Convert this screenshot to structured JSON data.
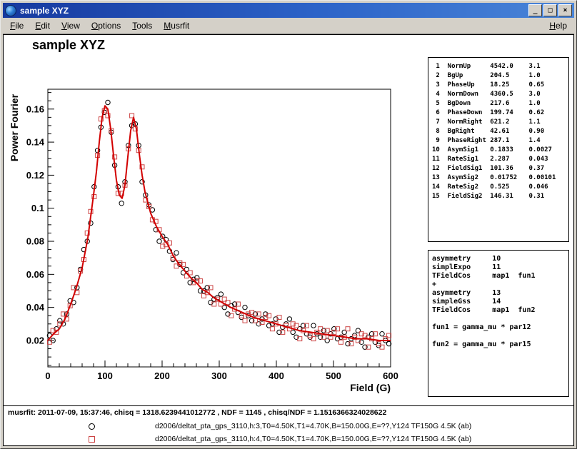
{
  "window": {
    "title": "sample XYZ",
    "titlebar_color": "#2c63c8",
    "buttons": {
      "minimize_glyph": "_",
      "maximize_glyph": "□",
      "close_glyph": "×"
    }
  },
  "menu": {
    "items": [
      "File",
      "Edit",
      "View",
      "Options",
      "Tools",
      "Musrfit"
    ],
    "help": "Help"
  },
  "canvas": {
    "title": "sample XYZ"
  },
  "params": {
    "rows": [
      {
        "n": 1,
        "name": "NormUp",
        "value": "4542.0",
        "err": "3.1"
      },
      {
        "n": 2,
        "name": "BgUp",
        "value": "204.5",
        "err": "1.0"
      },
      {
        "n": 3,
        "name": "PhaseUp",
        "value": "18.25",
        "err": "0.65"
      },
      {
        "n": 4,
        "name": "NormDown",
        "value": "4360.5",
        "err": "3.0"
      },
      {
        "n": 5,
        "name": "BgDown",
        "value": "217.6",
        "err": "1.0"
      },
      {
        "n": 6,
        "name": "PhaseDown",
        "value": "199.74",
        "err": "0.62"
      },
      {
        "n": 7,
        "name": "NormRight",
        "value": "621.2",
        "err": "1.1"
      },
      {
        "n": 8,
        "name": "BgRight",
        "value": "42.61",
        "err": "0.90"
      },
      {
        "n": 9,
        "name": "PhaseRight",
        "value": "287.1",
        "err": "1.4"
      },
      {
        "n": 10,
        "name": "AsymSig1",
        "value": "0.1833",
        "err": "0.0027"
      },
      {
        "n": 11,
        "name": "RateSig1",
        "value": "2.287",
        "err": "0.043"
      },
      {
        "n": 12,
        "name": "FieldSig1",
        "value": "101.36",
        "err": "0.37"
      },
      {
        "n": 13,
        "name": "AsymSig2",
        "value": "0.01752",
        "err": "0.00101"
      },
      {
        "n": 14,
        "name": "RateSig2",
        "value": "0.525",
        "err": "0.046"
      },
      {
        "n": 15,
        "name": "FieldSig2",
        "value": "146.31",
        "err": "0.31"
      }
    ]
  },
  "theory": {
    "lines": [
      "asymmetry     10",
      "simplExpo     11",
      "TFieldCos     map1  fun1",
      "+",
      "asymmetry     13",
      "simpleGss     14",
      "TFieldCos     map1  fun2",
      "",
      "fun1 = gamma_mu * par12",
      "",
      "fun2 = gamma_mu * par15"
    ]
  },
  "status": {
    "line": "musrfit: 2011-07-09, 15:37:46, chisq = 1318.6239441012772 , NDF = 1145 , chisq/NDF = 1.1516366324028622"
  },
  "legend": {
    "entries": [
      {
        "marker": "circle",
        "color": "#000000",
        "label": "d2006/deltat_pta_gps_3110,h:3,T0=4.50K,T1=4.70K,B=150.00G,E=??,Y124 TF150G 4.5K (ab)"
      },
      {
        "marker": "square",
        "color": "#cc4444",
        "label": "d2006/deltat_pta_gps_3110,h:4,T0=4.50K,T1=4.70K,B=150.00G,E=??,Y124 TF150G 4.5K (ab)"
      }
    ]
  },
  "chart_data": {
    "type": "scatter",
    "title": "sample XYZ",
    "xlabel": "Field (G)",
    "ylabel": "Power Fourier",
    "xlim": [
      0,
      600
    ],
    "ylim": [
      0.004,
      0.172
    ],
    "xticks": [
      0,
      100,
      200,
      300,
      400,
      500,
      600
    ],
    "yticks": [
      0.02,
      0.04,
      0.06,
      0.08,
      0.1,
      0.12,
      0.14,
      0.16
    ],
    "grid": false,
    "legend_position": "bottom",
    "series": [
      {
        "name": "h3-circles",
        "marker": "circle",
        "color": "#000000",
        "points": [
          [
            3,
            0.023
          ],
          [
            9,
            0.02
          ],
          [
            15,
            0.027
          ],
          [
            21,
            0.032
          ],
          [
            27,
            0.03
          ],
          [
            33,
            0.036
          ],
          [
            39,
            0.044
          ],
          [
            45,
            0.043
          ],
          [
            51,
            0.052
          ],
          [
            57,
            0.063
          ],
          [
            63,
            0.075
          ],
          [
            69,
            0.08
          ],
          [
            75,
            0.091
          ],
          [
            81,
            0.113
          ],
          [
            87,
            0.135
          ],
          [
            93,
            0.149
          ],
          [
            99,
            0.158
          ],
          [
            105,
            0.164
          ],
          [
            111,
            0.146
          ],
          [
            117,
            0.126
          ],
          [
            123,
            0.113
          ],
          [
            129,
            0.103
          ],
          [
            135,
            0.116
          ],
          [
            141,
            0.138
          ],
          [
            147,
            0.15
          ],
          [
            153,
            0.151
          ],
          [
            159,
            0.138
          ],
          [
            165,
            0.116
          ],
          [
            171,
            0.108
          ],
          [
            177,
            0.102
          ],
          [
            183,
            0.099
          ],
          [
            189,
            0.087
          ],
          [
            195,
            0.08
          ],
          [
            201,
            0.083
          ],
          [
            207,
            0.081
          ],
          [
            213,
            0.074
          ],
          [
            219,
            0.069
          ],
          [
            225,
            0.073
          ],
          [
            231,
            0.066
          ],
          [
            237,
            0.061
          ],
          [
            243,
            0.063
          ],
          [
            249,
            0.055
          ],
          [
            255,
            0.057
          ],
          [
            261,
            0.058
          ],
          [
            267,
            0.05
          ],
          [
            273,
            0.05
          ],
          [
            279,
            0.052
          ],
          [
            285,
            0.043
          ],
          [
            291,
            0.045
          ],
          [
            297,
            0.046
          ],
          [
            303,
            0.048
          ],
          [
            309,
            0.04
          ],
          [
            315,
            0.036
          ],
          [
            321,
            0.041
          ],
          [
            327,
            0.042
          ],
          [
            333,
            0.037
          ],
          [
            339,
            0.034
          ],
          [
            345,
            0.04
          ],
          [
            351,
            0.035
          ],
          [
            357,
            0.032
          ],
          [
            363,
            0.036
          ],
          [
            369,
            0.03
          ],
          [
            375,
            0.033
          ],
          [
            381,
            0.036
          ],
          [
            387,
            0.029
          ],
          [
            393,
            0.03
          ],
          [
            399,
            0.033
          ],
          [
            405,
            0.025
          ],
          [
            411,
            0.028
          ],
          [
            417,
            0.03
          ],
          [
            423,
            0.033
          ],
          [
            429,
            0.025
          ],
          [
            435,
            0.022
          ],
          [
            441,
            0.027
          ],
          [
            447,
            0.029
          ],
          [
            453,
            0.024
          ],
          [
            459,
            0.022
          ],
          [
            465,
            0.029
          ],
          [
            471,
            0.024
          ],
          [
            477,
            0.022
          ],
          [
            483,
            0.026
          ],
          [
            489,
            0.02
          ],
          [
            495,
            0.024
          ],
          [
            501,
            0.027
          ],
          [
            507,
            0.021
          ],
          [
            513,
            0.022
          ],
          [
            519,
            0.025
          ],
          [
            525,
            0.018
          ],
          [
            531,
            0.021
          ],
          [
            537,
            0.023
          ],
          [
            543,
            0.026
          ],
          [
            549,
            0.019
          ],
          [
            555,
            0.016
          ],
          [
            561,
            0.022
          ],
          [
            567,
            0.024
          ],
          [
            573,
            0.019
          ],
          [
            579,
            0.017
          ],
          [
            585,
            0.024
          ],
          [
            591,
            0.02
          ],
          [
            597,
            0.018
          ]
        ]
      },
      {
        "name": "h4-squares",
        "marker": "square",
        "color": "#cc4444",
        "points": [
          [
            3,
            0.019
          ],
          [
            9,
            0.026
          ],
          [
            15,
            0.025
          ],
          [
            21,
            0.03
          ],
          [
            27,
            0.036
          ],
          [
            33,
            0.033
          ],
          [
            39,
            0.041
          ],
          [
            45,
            0.052
          ],
          [
            51,
            0.049
          ],
          [
            57,
            0.062
          ],
          [
            63,
            0.069
          ],
          [
            69,
            0.085
          ],
          [
            75,
            0.098
          ],
          [
            81,
            0.107
          ],
          [
            87,
            0.132
          ],
          [
            93,
            0.154
          ],
          [
            99,
            0.159
          ],
          [
            105,
            0.156
          ],
          [
            111,
            0.147
          ],
          [
            117,
            0.131
          ],
          [
            123,
            0.109
          ],
          [
            129,
            0.109
          ],
          [
            135,
            0.114
          ],
          [
            141,
            0.136
          ],
          [
            147,
            0.156
          ],
          [
            153,
            0.148
          ],
          [
            159,
            0.135
          ],
          [
            165,
            0.125
          ],
          [
            171,
            0.105
          ],
          [
            177,
            0.101
          ],
          [
            183,
            0.093
          ],
          [
            189,
            0.092
          ],
          [
            195,
            0.087
          ],
          [
            201,
            0.077
          ],
          [
            207,
            0.078
          ],
          [
            213,
            0.079
          ],
          [
            219,
            0.07
          ],
          [
            225,
            0.065
          ],
          [
            231,
            0.067
          ],
          [
            237,
            0.066
          ],
          [
            243,
            0.059
          ],
          [
            249,
            0.061
          ],
          [
            255,
            0.055
          ],
          [
            261,
            0.056
          ],
          [
            267,
            0.056
          ],
          [
            273,
            0.047
          ],
          [
            279,
            0.049
          ],
          [
            285,
            0.052
          ],
          [
            291,
            0.042
          ],
          [
            297,
            0.045
          ],
          [
            303,
            0.042
          ],
          [
            309,
            0.045
          ],
          [
            315,
            0.043
          ],
          [
            321,
            0.035
          ],
          [
            327,
            0.039
          ],
          [
            333,
            0.042
          ],
          [
            339,
            0.035
          ],
          [
            345,
            0.032
          ],
          [
            351,
            0.036
          ],
          [
            357,
            0.037
          ],
          [
            363,
            0.032
          ],
          [
            369,
            0.036
          ],
          [
            375,
            0.031
          ],
          [
            381,
            0.034
          ],
          [
            387,
            0.035
          ],
          [
            393,
            0.027
          ],
          [
            399,
            0.03
          ],
          [
            405,
            0.034
          ],
          [
            411,
            0.025
          ],
          [
            417,
            0.029
          ],
          [
            423,
            0.027
          ],
          [
            429,
            0.03
          ],
          [
            435,
            0.029
          ],
          [
            441,
            0.021
          ],
          [
            447,
            0.026
          ],
          [
            453,
            0.029
          ],
          [
            459,
            0.023
          ],
          [
            465,
            0.021
          ],
          [
            471,
            0.025
          ],
          [
            477,
            0.027
          ],
          [
            483,
            0.022
          ],
          [
            489,
            0.026
          ],
          [
            495,
            0.022
          ],
          [
            501,
            0.025
          ],
          [
            507,
            0.027
          ],
          [
            513,
            0.019
          ],
          [
            519,
            0.022
          ],
          [
            525,
            0.027
          ],
          [
            531,
            0.018
          ],
          [
            537,
            0.022
          ],
          [
            543,
            0.02
          ],
          [
            549,
            0.024
          ],
          [
            555,
            0.023
          ],
          [
            561,
            0.016
          ],
          [
            567,
            0.021
          ],
          [
            573,
            0.024
          ],
          [
            579,
            0.018
          ],
          [
            585,
            0.016
          ],
          [
            591,
            0.021
          ],
          [
            597,
            0.023
          ]
        ]
      },
      {
        "name": "fit",
        "type": "line",
        "color": "#d20000",
        "points": [
          [
            0,
            0.02
          ],
          [
            10,
            0.024
          ],
          [
            20,
            0.027
          ],
          [
            30,
            0.033
          ],
          [
            40,
            0.042
          ],
          [
            50,
            0.052
          ],
          [
            60,
            0.064
          ],
          [
            70,
            0.082
          ],
          [
            80,
            0.108
          ],
          [
            85,
            0.122
          ],
          [
            90,
            0.14
          ],
          [
            95,
            0.155
          ],
          [
            100,
            0.162
          ],
          [
            105,
            0.16
          ],
          [
            110,
            0.148
          ],
          [
            115,
            0.132
          ],
          [
            120,
            0.117
          ],
          [
            125,
            0.108
          ],
          [
            130,
            0.106
          ],
          [
            135,
            0.114
          ],
          [
            140,
            0.131
          ],
          [
            145,
            0.147
          ],
          [
            150,
            0.155
          ],
          [
            155,
            0.148
          ],
          [
            160,
            0.133
          ],
          [
            165,
            0.12
          ],
          [
            170,
            0.11
          ],
          [
            180,
            0.097
          ],
          [
            190,
            0.089
          ],
          [
            200,
            0.083
          ],
          [
            210,
            0.078
          ],
          [
            220,
            0.071
          ],
          [
            230,
            0.066
          ],
          [
            240,
            0.062
          ],
          [
            250,
            0.058
          ],
          [
            260,
            0.055
          ],
          [
            270,
            0.051
          ],
          [
            280,
            0.049
          ],
          [
            290,
            0.046
          ],
          [
            300,
            0.044
          ],
          [
            320,
            0.04
          ],
          [
            340,
            0.037
          ],
          [
            360,
            0.034
          ],
          [
            380,
            0.032
          ],
          [
            400,
            0.03
          ],
          [
            420,
            0.028
          ],
          [
            440,
            0.026
          ],
          [
            460,
            0.025
          ],
          [
            480,
            0.024
          ],
          [
            500,
            0.023
          ],
          [
            520,
            0.022
          ],
          [
            540,
            0.021
          ],
          [
            560,
            0.021
          ],
          [
            580,
            0.02
          ],
          [
            600,
            0.02
          ]
        ]
      }
    ]
  }
}
